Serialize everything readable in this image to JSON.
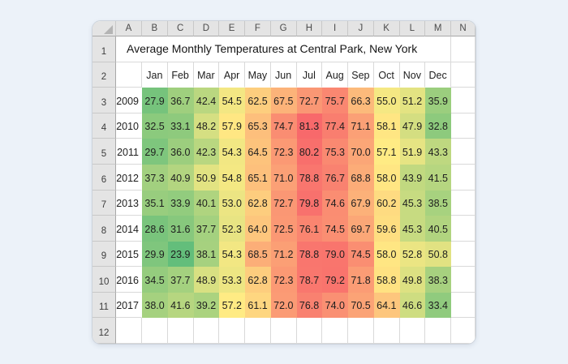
{
  "page": {
    "background_color": "#ecf2f9"
  },
  "card": {
    "background_color": "#ffffff"
  },
  "spreadsheet": {
    "title": "Average Monthly Temperatures at Central Park, New York",
    "column_headers": [
      "A",
      "B",
      "C",
      "D",
      "E",
      "F",
      "G",
      "H",
      "I",
      "J",
      "K",
      "L",
      "M",
      "N"
    ],
    "row_numbers": [
      "1",
      "2",
      "3",
      "4",
      "5",
      "6",
      "7",
      "8",
      "9",
      "10",
      "11",
      "12"
    ],
    "months": [
      "Jan",
      "Feb",
      "Mar",
      "Apr",
      "May",
      "Jun",
      "Jul",
      "Aug",
      "Sep",
      "Oct",
      "Nov",
      "Dec"
    ],
    "rows": [
      {
        "year": "2009",
        "values": [
          27.9,
          36.7,
          42.4,
          54.5,
          62.5,
          67.5,
          72.7,
          75.7,
          66.3,
          55.0,
          51.2,
          35.9
        ]
      },
      {
        "year": "2010",
        "values": [
          32.5,
          33.1,
          48.2,
          57.9,
          65.3,
          74.7,
          81.3,
          77.4,
          71.1,
          58.1,
          47.9,
          32.8
        ]
      },
      {
        "year": "2011",
        "values": [
          29.7,
          36.0,
          42.3,
          54.3,
          64.5,
          72.3,
          80.2,
          75.3,
          70.0,
          57.1,
          51.9,
          43.3
        ]
      },
      {
        "year": "2012",
        "values": [
          37.3,
          40.9,
          50.9,
          54.8,
          65.1,
          71.0,
          78.8,
          76.7,
          68.8,
          58.0,
          43.9,
          41.5
        ]
      },
      {
        "year": "2013",
        "values": [
          35.1,
          33.9,
          40.1,
          53.0,
          62.8,
          72.7,
          79.8,
          74.6,
          67.9,
          60.2,
          45.3,
          38.5
        ]
      },
      {
        "year": "2014",
        "values": [
          28.6,
          31.6,
          37.7,
          52.3,
          64.0,
          72.5,
          76.1,
          74.5,
          69.7,
          59.6,
          45.3,
          40.5
        ]
      },
      {
        "year": "2015",
        "values": [
          29.9,
          23.9,
          38.1,
          54.3,
          68.5,
          71.2,
          78.8,
          79.0,
          74.5,
          58.0,
          52.8,
          50.8
        ]
      },
      {
        "year": "2016",
        "values": [
          34.5,
          37.7,
          48.9,
          53.3,
          62.8,
          72.3,
          78.7,
          79.2,
          71.8,
          58.8,
          49.8,
          38.3
        ]
      },
      {
        "year": "2017",
        "values": [
          38.0,
          41.6,
          39.2,
          57.2,
          61.1,
          72.0,
          76.8,
          74.0,
          70.5,
          64.1,
          46.6,
          33.4
        ]
      }
    ],
    "heatmap": {
      "min_color": "#63BE7B",
      "mid_color": "#FFEB84",
      "max_color": "#F8696B"
    },
    "value_format": "0.0"
  },
  "chart_data": {
    "type": "heatmap",
    "title": "Average Monthly Temperatures at Central Park, New York",
    "x_labels": [
      "Jan",
      "Feb",
      "Mar",
      "Apr",
      "May",
      "Jun",
      "Jul",
      "Aug",
      "Sep",
      "Oct",
      "Nov",
      "Dec"
    ],
    "y_labels": [
      "2009",
      "2010",
      "2011",
      "2012",
      "2013",
      "2014",
      "2015",
      "2016",
      "2017"
    ],
    "values": [
      [
        27.9,
        36.7,
        42.4,
        54.5,
        62.5,
        67.5,
        72.7,
        75.7,
        66.3,
        55.0,
        51.2,
        35.9
      ],
      [
        32.5,
        33.1,
        48.2,
        57.9,
        65.3,
        74.7,
        81.3,
        77.4,
        71.1,
        58.1,
        47.9,
        32.8
      ],
      [
        29.7,
        36.0,
        42.3,
        54.3,
        64.5,
        72.3,
        80.2,
        75.3,
        70.0,
        57.1,
        51.9,
        43.3
      ],
      [
        37.3,
        40.9,
        50.9,
        54.8,
        65.1,
        71.0,
        78.8,
        76.7,
        68.8,
        58.0,
        43.9,
        41.5
      ],
      [
        35.1,
        33.9,
        40.1,
        53.0,
        62.8,
        72.7,
        79.8,
        74.6,
        67.9,
        60.2,
        45.3,
        38.5
      ],
      [
        28.6,
        31.6,
        37.7,
        52.3,
        64.0,
        72.5,
        76.1,
        74.5,
        69.7,
        59.6,
        45.3,
        40.5
      ],
      [
        29.9,
        23.9,
        38.1,
        54.3,
        68.5,
        71.2,
        78.8,
        79.0,
        74.5,
        58.0,
        52.8,
        50.8
      ],
      [
        34.5,
        37.7,
        48.9,
        53.3,
        62.8,
        72.3,
        78.7,
        79.2,
        71.8,
        58.8,
        49.8,
        38.3
      ],
      [
        38.0,
        41.6,
        39.2,
        57.2,
        61.1,
        72.0,
        76.8,
        74.0,
        70.5,
        64.1,
        46.6,
        33.4
      ]
    ],
    "value_range": [
      23.9,
      81.3
    ],
    "color_scale": {
      "min": "#63BE7B",
      "mid": "#FFEB84",
      "max": "#F8696B"
    },
    "legend": "none",
    "grid": "on"
  }
}
